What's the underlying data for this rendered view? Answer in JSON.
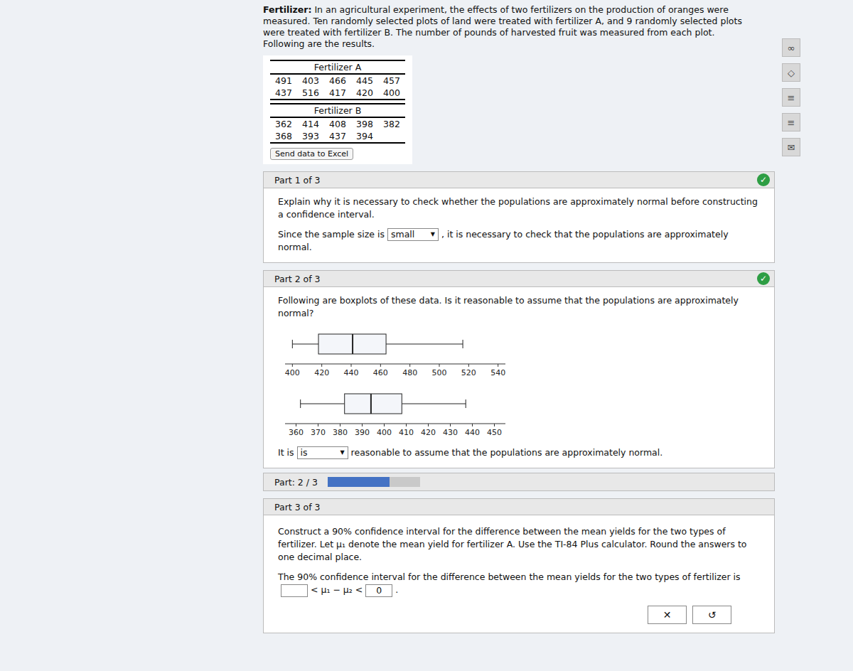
{
  "chart_data": [
    {
      "type": "box",
      "orientation": "horizontal",
      "xlim": [
        395,
        545
      ],
      "xticks": [
        400,
        420,
        440,
        460,
        480,
        500,
        520,
        540
      ],
      "whisker_low": 400,
      "q1": 417.75,
      "median": 441,
      "q3": 463.75,
      "whisker_high": 516,
      "color": "#222222"
    },
    {
      "type": "box",
      "orientation": "horizontal",
      "xlim": [
        355,
        455
      ],
      "xticks": [
        360,
        370,
        380,
        390,
        400,
        410,
        420,
        430,
        440,
        450
      ],
      "whisker_low": 362,
      "q1": 382,
      "median": 394,
      "q3": 408,
      "whisker_high": 437,
      "color": "#222222"
    }
  ],
  "page": {
    "header_label": "Fertilizer:",
    "header_lines": [
      "In an agricultural experiment, the effects of two fertilizers on the production of oranges were measured. Ten",
      "randomly selected plots of land were treated with fertilizer A, and 9 randomly selected plots were treated with fertilizer B.",
      "The number of pounds of harvested fruit was measured from each plot. Following are the results."
    ],
    "tables": [
      {
        "title": "Fertilizer A",
        "rows": [
          [
            "491",
            "403",
            "466",
            "445",
            "457"
          ],
          [
            "437",
            "516",
            "417",
            "420",
            "400"
          ]
        ]
      },
      {
        "title": "Fertilizer B",
        "rows": [
          [
            "362",
            "414",
            "408",
            "398",
            "382"
          ],
          [
            "368",
            "393",
            "437",
            "394"
          ]
        ]
      }
    ],
    "send_data_btn": "Send data to Excel",
    "icons": [
      "∞",
      "◇",
      "≡",
      "≡",
      "✉"
    ],
    "part1": {
      "label": "Part 1 of 3",
      "check": "✓",
      "question_lines": [
        "Explain why it is necessary to check whether the populations are approximately normal before constructing a confidence",
        "interval."
      ],
      "since_before": "Since the sample size is",
      "dropdown": "small",
      "dropdown_arrow": "▼",
      "since_after": ", it is necessary to check that the populations are approximately normal."
    },
    "part2": {
      "label": "Part 2 of 3",
      "check": "✓",
      "question": "Following are boxplots of these data. Is it reasonable to assume that the populations are approximately normal?",
      "answer_words": [
        "It",
        "is"
      ],
      "dropdown": "is",
      "dropdown_arrow": "▼",
      "answer_after": "reasonable to assume that the populations are approximately normal."
    },
    "progress": {
      "label": "Part: 2 / 3",
      "done": 2,
      "total": 3
    },
    "part3": {
      "label": "Part 3 of 3",
      "question_lines": [
        "Construct a 90% confidence interval for the difference between the mean yields for the two types of fertilizer. Let μ₁",
        "denote the mean yield for fertilizer A. Use the TI-84 Plus calculator. Round the answers to one decimal place."
      ],
      "answer_lines": [
        "The 90% confidence interval for the difference between the mean yields for the two types of",
        "fertilizer is"
      ],
      "between": "< μ₁ − μ₂ <",
      "blank2": "0",
      "end": ".",
      "buttons": [
        "✕",
        "↺"
      ]
    }
  }
}
